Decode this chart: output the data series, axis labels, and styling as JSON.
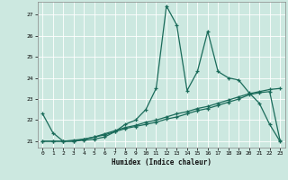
{
  "xlabel": "Humidex (Indice chaleur)",
  "bg_color": "#cce8e0",
  "grid_color": "#ffffff",
  "line_color": "#1a6b5a",
  "xlim": [
    -0.5,
    23.5
  ],
  "ylim": [
    20.7,
    27.6
  ],
  "yticks": [
    21,
    22,
    23,
    24,
    25,
    26,
    27
  ],
  "xticks": [
    0,
    1,
    2,
    3,
    4,
    5,
    6,
    7,
    8,
    9,
    10,
    11,
    12,
    13,
    14,
    15,
    16,
    17,
    18,
    19,
    20,
    21,
    22,
    23
  ],
  "series1_x": [
    0,
    1,
    2,
    3,
    4,
    5,
    6,
    7,
    8,
    9,
    10,
    11,
    12,
    13,
    14,
    15,
    16,
    17,
    18,
    19,
    20,
    21,
    22,
    23
  ],
  "series1_y": [
    22.3,
    21.4,
    21.0,
    21.0,
    21.05,
    21.1,
    21.2,
    21.45,
    21.8,
    22.0,
    22.5,
    23.5,
    27.4,
    26.5,
    23.4,
    24.3,
    26.2,
    24.3,
    24.0,
    23.9,
    23.3,
    22.8,
    21.8,
    21.0
  ],
  "series2_x": [
    0,
    1,
    2,
    3,
    4,
    5,
    6,
    7,
    8,
    9,
    10,
    11,
    12,
    13,
    14,
    15,
    16,
    17,
    18,
    19,
    20,
    21,
    22,
    23
  ],
  "series2_y": [
    21.0,
    21.0,
    21.0,
    21.05,
    21.1,
    21.2,
    21.3,
    21.45,
    21.6,
    21.7,
    21.8,
    21.9,
    22.05,
    22.15,
    22.3,
    22.45,
    22.55,
    22.7,
    22.85,
    23.0,
    23.2,
    23.3,
    23.35,
    21.05
  ],
  "series3_x": [
    0,
    1,
    2,
    3,
    4,
    5,
    6,
    7,
    8,
    9,
    10,
    11,
    12,
    13,
    14,
    15,
    16,
    17,
    18,
    19,
    20,
    21,
    22,
    23
  ],
  "series3_y": [
    21.0,
    21.0,
    21.0,
    21.0,
    21.1,
    21.2,
    21.35,
    21.5,
    21.65,
    21.75,
    21.9,
    22.0,
    22.15,
    22.3,
    22.4,
    22.55,
    22.65,
    22.8,
    22.95,
    23.1,
    23.25,
    23.35,
    23.45,
    23.5
  ]
}
